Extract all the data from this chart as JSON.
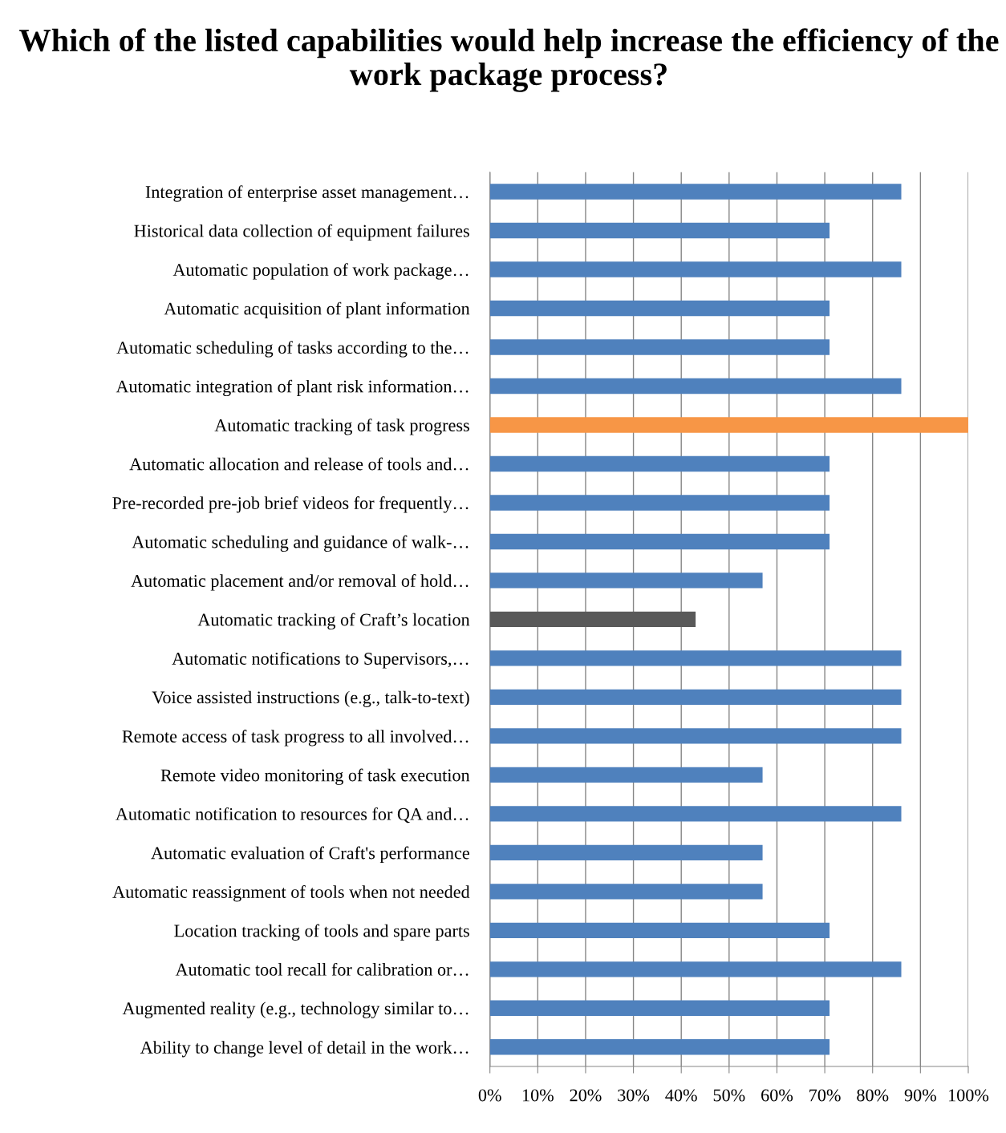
{
  "chart_data": {
    "type": "bar",
    "orientation": "horizontal",
    "title": "Which of the listed capabilities would help increase the efficiency of the work package process?",
    "categories": [
      "Integration of enterprise asset management…",
      "Historical data collection of equipment failures",
      "Automatic population of work package…",
      "Automatic acquisition of plant information",
      "Automatic scheduling of tasks according to the…",
      "Automatic integration of plant risk information…",
      "Automatic tracking of task progress",
      "Automatic allocation and release of tools and…",
      "Pre-recorded pre-job brief videos for frequently…",
      "Automatic scheduling and guidance of walk-…",
      "Automatic placement and/or removal of hold…",
      "Automatic tracking of Craft’s location",
      "Automatic notifications to Supervisors,…",
      "Voice assisted instructions (e.g., talk-to-text)",
      "Remote access of task progress to all involved…",
      "Remote video monitoring of task execution",
      "Automatic notification to resources for QA and…",
      "Automatic evaluation of Craft's performance",
      "Automatic reassignment of tools when not needed",
      "Location tracking of tools and spare parts",
      "Automatic tool recall for calibration or…",
      "Augmented reality (e.g., technology similar to…",
      "Ability to change level of detail in the work…"
    ],
    "values": [
      86,
      71,
      86,
      71,
      71,
      86,
      100,
      71,
      71,
      71,
      57,
      43,
      86,
      86,
      86,
      57,
      86,
      57,
      57,
      71,
      86,
      71,
      71
    ],
    "colors": [
      "#4f81bd",
      "#4f81bd",
      "#4f81bd",
      "#4f81bd",
      "#4f81bd",
      "#4f81bd",
      "#f79646",
      "#4f81bd",
      "#4f81bd",
      "#4f81bd",
      "#4f81bd",
      "#595959",
      "#4f81bd",
      "#4f81bd",
      "#4f81bd",
      "#4f81bd",
      "#4f81bd",
      "#4f81bd",
      "#4f81bd",
      "#4f81bd",
      "#4f81bd",
      "#4f81bd",
      "#4f81bd"
    ],
    "xlim": [
      0,
      100
    ],
    "xticks": [
      {
        "value": 0,
        "label": "0%"
      },
      {
        "value": 10,
        "label": "10%"
      },
      {
        "value": 20,
        "label": "20%"
      },
      {
        "value": 30,
        "label": "30%"
      },
      {
        "value": 40,
        "label": "40%"
      },
      {
        "value": 50,
        "label": "50%"
      },
      {
        "value": 60,
        "label": "60%"
      },
      {
        "value": 70,
        "label": "70%"
      },
      {
        "value": 80,
        "label": "80%"
      },
      {
        "value": 90,
        "label": "90%"
      },
      {
        "value": 100,
        "label": "100%"
      }
    ],
    "grid": "x",
    "legend": false
  }
}
